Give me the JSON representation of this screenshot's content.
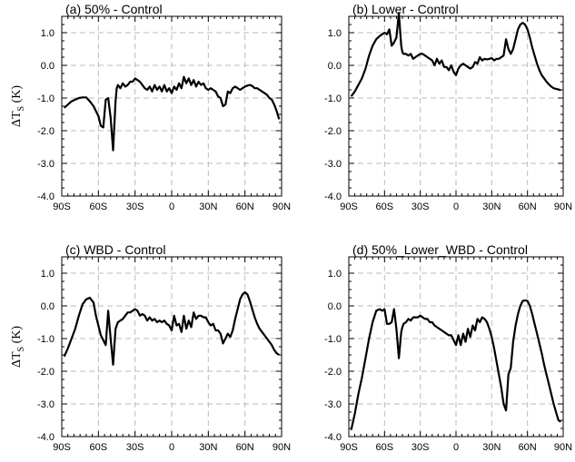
{
  "figure": {
    "ylabel_main": "ΔT",
    "ylabel_sub": "S",
    "ylabel_unit": " (K)"
  },
  "chart_data": [
    {
      "type": "line",
      "title": "(a) 50% - Control",
      "xlabel": "",
      "ylabel": "ΔTS (K)",
      "xlim": [
        -90,
        90
      ],
      "ylim": [
        -4.0,
        1.5
      ],
      "xticks": [
        -90,
        -60,
        -30,
        0,
        30,
        60,
        90
      ],
      "xtick_labels": [
        "90S",
        "60S",
        "30S",
        "0",
        "30N",
        "60N",
        "90N"
      ],
      "yticks": [
        1.0,
        0.0,
        -1.0,
        -2.0,
        -3.0,
        -4.0
      ],
      "ytick_labels": [
        "1.0",
        "0.0",
        "-1.0",
        "-2.0",
        "-3.0",
        "-4.0"
      ],
      "grid": true,
      "series": [
        {
          "x": [
            -88,
            -85,
            -82,
            -79,
            -76,
            -73,
            -70,
            -67,
            -64,
            -62,
            -60,
            -58,
            -56,
            -54,
            -52,
            -50,
            -48,
            -46,
            -45,
            -44,
            -42,
            -40,
            -38,
            -36,
            -34,
            -32,
            -30,
            -28,
            -26,
            -24,
            -22,
            -20,
            -18,
            -16,
            -14,
            -12,
            -10,
            -8,
            -6,
            -4,
            -2,
            0,
            2,
            4,
            6,
            8,
            10,
            12,
            14,
            16,
            18,
            20,
            22,
            24,
            26,
            28,
            30,
            32,
            34,
            36,
            38,
            40,
            42,
            44,
            46,
            48,
            50,
            52,
            54,
            56,
            58,
            60,
            62,
            64,
            66,
            68,
            70,
            72,
            74,
            76,
            78,
            80,
            82,
            84,
            86,
            88
          ],
          "y": [
            -1.3,
            -1.2,
            -1.1,
            -1.05,
            -1.0,
            -0.98,
            -0.98,
            -1.1,
            -1.25,
            -1.4,
            -1.55,
            -1.85,
            -1.9,
            -1.05,
            -1.0,
            -1.6,
            -2.6,
            -1.1,
            -0.7,
            -0.6,
            -0.7,
            -0.55,
            -0.65,
            -0.6,
            -0.5,
            -0.5,
            -0.4,
            -0.45,
            -0.5,
            -0.6,
            -0.7,
            -0.75,
            -0.65,
            -0.8,
            -0.6,
            -0.75,
            -0.65,
            -0.8,
            -0.6,
            -0.8,
            -0.7,
            -0.85,
            -0.65,
            -0.75,
            -0.55,
            -0.7,
            -0.35,
            -0.55,
            -0.4,
            -0.6,
            -0.45,
            -0.65,
            -0.5,
            -0.6,
            -0.55,
            -0.7,
            -0.75,
            -0.7,
            -0.75,
            -0.8,
            -0.95,
            -1.0,
            -1.25,
            -1.2,
            -0.8,
            -0.85,
            -0.7,
            -0.65,
            -0.7,
            -0.75,
            -0.7,
            -0.65,
            -0.62,
            -0.6,
            -0.63,
            -0.7,
            -0.7,
            -0.75,
            -0.8,
            -0.85,
            -0.9,
            -1.0,
            -1.05,
            -1.2,
            -1.4,
            -1.65
          ]
        }
      ]
    },
    {
      "type": "line",
      "title": "(b) Lower - Control",
      "xlabel": "",
      "ylabel": "",
      "xlim": [
        -90,
        90
      ],
      "ylim": [
        -4.0,
        1.5
      ],
      "xticks": [
        -90,
        -60,
        -30,
        0,
        30,
        60,
        90
      ],
      "xtick_labels": [
        "90S",
        "60S",
        "30S",
        "0",
        "30N",
        "60N",
        "90N"
      ],
      "yticks": [
        1.0,
        0.0,
        -1.0,
        -2.0,
        -3.0,
        -4.0
      ],
      "ytick_labels": [
        "1.0",
        "0.0",
        "-1.0",
        "-2.0",
        "-3.0",
        "-4.0"
      ],
      "grid": true,
      "series": [
        {
          "x": [
            -88,
            -85,
            -82,
            -79,
            -76,
            -73,
            -70,
            -67,
            -64,
            -62,
            -60,
            -58,
            -56,
            -54,
            -52,
            -50,
            -48,
            -46,
            -45,
            -44,
            -42,
            -40,
            -38,
            -36,
            -34,
            -32,
            -30,
            -28,
            -26,
            -24,
            -22,
            -20,
            -18,
            -16,
            -14,
            -12,
            -10,
            -8,
            -6,
            -4,
            -2,
            0,
            2,
            4,
            6,
            8,
            10,
            12,
            14,
            16,
            18,
            20,
            22,
            24,
            26,
            28,
            30,
            32,
            34,
            36,
            38,
            40,
            42,
            44,
            46,
            48,
            50,
            52,
            54,
            56,
            58,
            60,
            62,
            64,
            66,
            68,
            70,
            72,
            74,
            76,
            78,
            80,
            82,
            84,
            86,
            88
          ],
          "y": [
            -0.95,
            -0.8,
            -0.6,
            -0.4,
            -0.1,
            0.3,
            0.6,
            0.8,
            0.9,
            0.95,
            1.0,
            0.95,
            1.1,
            0.6,
            0.7,
            0.85,
            1.6,
            0.6,
            0.4,
            0.35,
            0.35,
            0.3,
            0.35,
            0.2,
            0.25,
            0.3,
            0.35,
            0.35,
            0.3,
            0.25,
            0.2,
            0.15,
            0.0,
            0.2,
            0.05,
            0.15,
            -0.05,
            -0.05,
            -0.15,
            0.0,
            -0.2,
            -0.3,
            -0.1,
            0.0,
            0.05,
            0.0,
            -0.05,
            -0.1,
            -0.05,
            0.1,
            0.05,
            0.25,
            0.15,
            0.2,
            0.18,
            0.2,
            0.22,
            0.15,
            0.2,
            0.2,
            0.25,
            0.3,
            0.8,
            0.5,
            0.35,
            0.5,
            0.8,
            1.1,
            1.25,
            1.3,
            1.25,
            1.1,
            0.85,
            0.55,
            0.3,
            0.05,
            -0.15,
            -0.3,
            -0.4,
            -0.5,
            -0.58,
            -0.65,
            -0.7,
            -0.72,
            -0.74,
            -0.76
          ]
        }
      ]
    },
    {
      "type": "line",
      "title": "(c) WBD - Control",
      "xlabel": "",
      "ylabel": "ΔTS (K)",
      "xlim": [
        -90,
        90
      ],
      "ylim": [
        -4.0,
        1.5
      ],
      "xticks": [
        -90,
        -60,
        -30,
        0,
        30,
        60,
        90
      ],
      "xtick_labels": [
        "90S",
        "60S",
        "30S",
        "0",
        "30N",
        "60N",
        "90N"
      ],
      "yticks": [
        1.0,
        0.0,
        -1.0,
        -2.0,
        -3.0,
        -4.0
      ],
      "ytick_labels": [
        "1.0",
        "0.0",
        "-1.0",
        "-2.0",
        "-3.0",
        "-4.0"
      ],
      "grid": true,
      "series": [
        {
          "x": [
            -88,
            -85,
            -82,
            -79,
            -76,
            -73,
            -70,
            -67,
            -64,
            -62,
            -60,
            -58,
            -56,
            -54,
            -52,
            -50,
            -48,
            -46,
            -45,
            -44,
            -42,
            -40,
            -38,
            -36,
            -34,
            -32,
            -30,
            -28,
            -26,
            -24,
            -22,
            -20,
            -18,
            -16,
            -14,
            -12,
            -10,
            -8,
            -6,
            -4,
            -2,
            0,
            2,
            4,
            6,
            8,
            10,
            12,
            14,
            16,
            18,
            20,
            22,
            24,
            26,
            28,
            30,
            32,
            34,
            36,
            38,
            40,
            42,
            44,
            46,
            48,
            50,
            52,
            54,
            56,
            58,
            60,
            62,
            64,
            66,
            68,
            70,
            72,
            74,
            76,
            78,
            80,
            82,
            84,
            86,
            88
          ],
          "y": [
            -1.55,
            -1.3,
            -1.0,
            -0.7,
            -0.3,
            0.05,
            0.2,
            0.25,
            0.1,
            -0.3,
            -0.6,
            -0.9,
            -1.05,
            -1.2,
            -0.15,
            -1.0,
            -1.8,
            -0.7,
            -0.6,
            -0.5,
            -0.45,
            -0.4,
            -0.3,
            -0.2,
            -0.2,
            -0.15,
            -0.1,
            -0.15,
            -0.3,
            -0.25,
            -0.3,
            -0.45,
            -0.35,
            -0.45,
            -0.4,
            -0.5,
            -0.45,
            -0.5,
            -0.45,
            -0.55,
            -0.6,
            -0.75,
            -0.3,
            -0.6,
            -0.55,
            -0.8,
            -0.3,
            -0.7,
            -0.45,
            -0.65,
            -0.2,
            -0.4,
            -0.3,
            -0.3,
            -0.35,
            -0.35,
            -0.5,
            -0.6,
            -0.55,
            -0.75,
            -0.75,
            -0.85,
            -1.15,
            -1.0,
            -0.85,
            -0.95,
            -0.75,
            -0.4,
            -0.1,
            0.2,
            0.35,
            0.42,
            0.35,
            0.15,
            -0.1,
            -0.35,
            -0.55,
            -0.7,
            -0.8,
            -0.9,
            -1.0,
            -1.1,
            -1.2,
            -1.35,
            -1.45,
            -1.5
          ]
        }
      ]
    },
    {
      "type": "line",
      "title": "(d) 50%_Lower_WBD - Control",
      "xlabel": "",
      "ylabel": "",
      "xlim": [
        -90,
        90
      ],
      "ylim": [
        -4.0,
        1.5
      ],
      "xticks": [
        -90,
        -60,
        -30,
        0,
        30,
        60,
        90
      ],
      "xtick_labels": [
        "90S",
        "60S",
        "30S",
        "0",
        "30N",
        "60N",
        "90N"
      ],
      "yticks": [
        1.0,
        0.0,
        -1.0,
        -2.0,
        -3.0,
        -4.0
      ],
      "ytick_labels": [
        "1.0",
        "0.0",
        "-1.0",
        "-2.0",
        "-3.0",
        "-4.0"
      ],
      "grid": true,
      "series": [
        {
          "x": [
            -88,
            -85,
            -82,
            -79,
            -76,
            -73,
            -70,
            -67,
            -64,
            -62,
            -60,
            -58,
            -56,
            -54,
            -52,
            -50,
            -48,
            -46,
            -45,
            -44,
            -42,
            -40,
            -38,
            -36,
            -34,
            -32,
            -30,
            -28,
            -26,
            -24,
            -22,
            -20,
            -18,
            -16,
            -14,
            -12,
            -10,
            -8,
            -6,
            -4,
            -2,
            0,
            2,
            4,
            6,
            8,
            10,
            12,
            14,
            16,
            18,
            20,
            22,
            24,
            26,
            28,
            30,
            32,
            34,
            36,
            38,
            40,
            42,
            44,
            46,
            48,
            50,
            52,
            54,
            56,
            58,
            60,
            62,
            64,
            66,
            68,
            70,
            72,
            74,
            76,
            78,
            80,
            82,
            84,
            86,
            88
          ],
          "y": [
            -3.8,
            -3.3,
            -2.7,
            -2.2,
            -1.6,
            -1.0,
            -0.5,
            -0.15,
            -0.1,
            -0.15,
            -0.1,
            -0.55,
            -0.55,
            -0.5,
            -0.1,
            -0.7,
            -1.6,
            -0.8,
            -0.65,
            -0.55,
            -0.5,
            -0.4,
            -0.45,
            -0.35,
            -0.35,
            -0.35,
            -0.3,
            -0.35,
            -0.4,
            -0.4,
            -0.5,
            -0.5,
            -0.6,
            -0.65,
            -0.7,
            -0.75,
            -0.8,
            -0.85,
            -0.9,
            -0.9,
            -1.05,
            -1.2,
            -0.9,
            -1.2,
            -0.85,
            -1.1,
            -0.7,
            -0.95,
            -0.6,
            -0.75,
            -0.4,
            -0.5,
            -0.35,
            -0.4,
            -0.5,
            -0.7,
            -0.95,
            -1.3,
            -1.7,
            -2.1,
            -2.5,
            -3.0,
            -3.2,
            -2.1,
            -1.9,
            -1.1,
            -0.6,
            -0.25,
            0.0,
            0.15,
            0.17,
            0.15,
            0.0,
            -0.25,
            -0.55,
            -0.85,
            -1.15,
            -1.45,
            -1.8,
            -2.1,
            -2.4,
            -2.7,
            -3.0,
            -3.25,
            -3.5,
            -3.55
          ]
        }
      ]
    }
  ]
}
